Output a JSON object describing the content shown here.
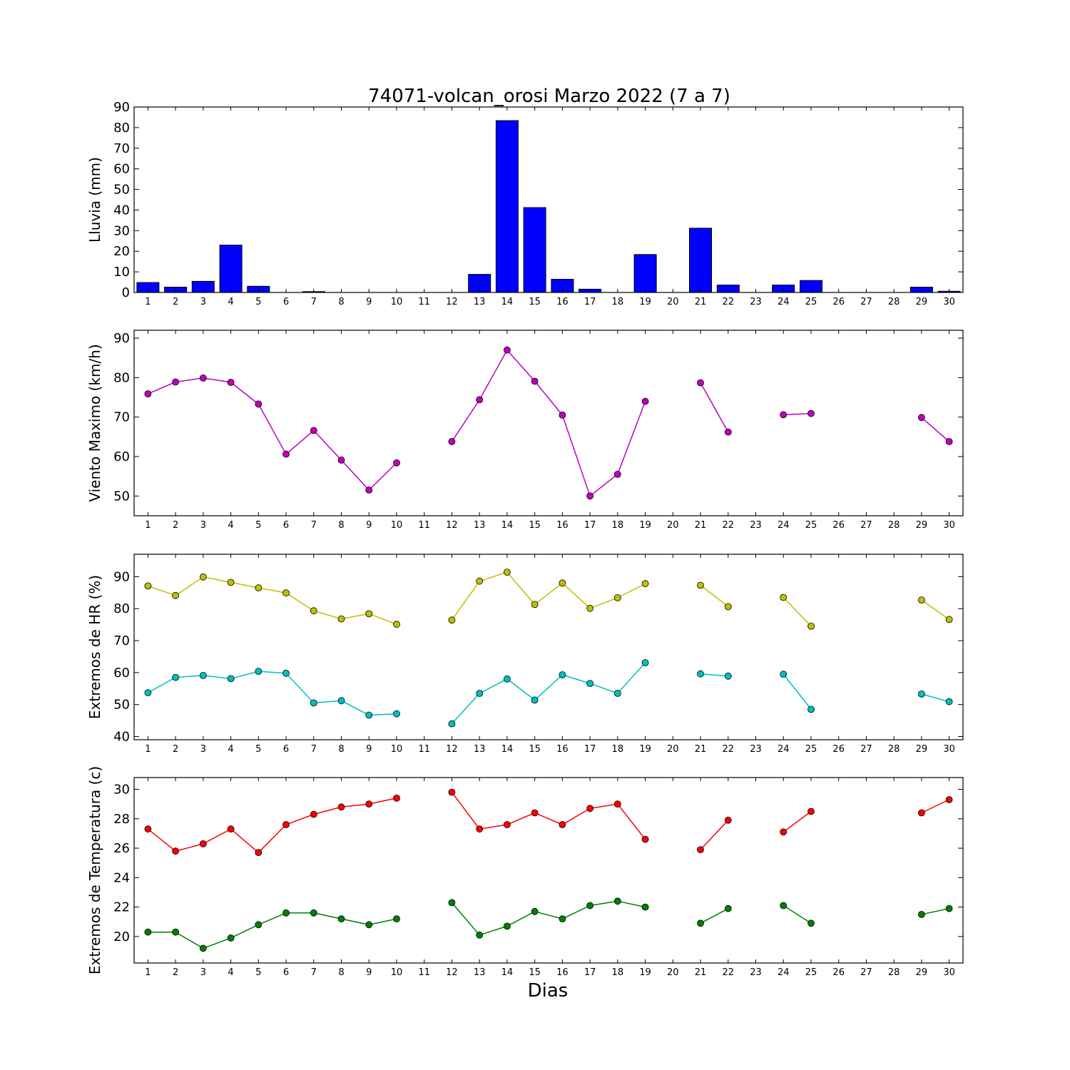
{
  "chart_data": {
    "title": "74071-volcan_orosi Marzo 2022  (7 a 7)",
    "xlabel": "Dias",
    "x_ticks": [
      "1",
      "2",
      "3",
      "4",
      "5",
      "6",
      "7",
      "8",
      "9",
      "10",
      "11",
      "12",
      "13",
      "14",
      "15",
      "16",
      "17",
      "18",
      "19",
      "20",
      "21",
      "22",
      "23",
      "24",
      "25",
      "26",
      "27",
      "28",
      "29",
      "30"
    ],
    "panels": [
      {
        "type": "bar",
        "ylabel": "Lluvia (mm)",
        "ylim": [
          0,
          90
        ],
        "yticks": [
          0,
          10,
          20,
          30,
          40,
          50,
          60,
          70,
          80,
          90
        ],
        "series": [
          {
            "color": "#0000ff",
            "values": [
              4.8,
              2.6,
              5.4,
              23.0,
              3.0,
              0.0,
              0.4,
              0.0,
              0.0,
              0.0,
              0.0,
              0.0,
              8.8,
              83.4,
              41.2,
              6.4,
              1.6,
              0.0,
              18.4,
              0.0,
              31.2,
              3.6,
              0.0,
              3.6,
              5.8,
              0.0,
              0.0,
              0.0,
              2.6,
              0.6
            ]
          }
        ]
      },
      {
        "type": "line",
        "ylabel": "Viento Maximo (km/h)",
        "ylim": [
          45,
          92
        ],
        "yticks": [
          50,
          60,
          70,
          80,
          90
        ],
        "series": [
          {
            "color": "#bf00bf",
            "values": [
              75.9,
              78.9,
              79.9,
              78.8,
              73.3,
              60.6,
              66.6,
              59.1,
              51.5,
              58.4,
              null,
              63.8,
              74.4,
              87.0,
              79.1,
              70.5,
              50.0,
              55.5,
              74.0,
              null,
              78.7,
              66.2,
              null,
              70.6,
              70.9,
              null,
              null,
              null,
              69.9,
              63.8
            ]
          }
        ]
      },
      {
        "type": "line",
        "ylabel": "Extremos de HR (%)",
        "ylim": [
          39,
          97
        ],
        "yticks": [
          40,
          50,
          60,
          70,
          80,
          90
        ],
        "series": [
          {
            "color": "#bfbf00",
            "values": [
              87.1,
              84.1,
              89.9,
              88.2,
              86.5,
              84.9,
              79.3,
              76.8,
              78.4,
              75.1,
              null,
              76.4,
              88.6,
              91.4,
              81.3,
              88.0,
              80.1,
              83.4,
              87.8,
              null,
              87.3,
              80.6,
              null,
              83.5,
              74.5,
              null,
              null,
              null,
              82.7,
              76.6
            ]
          },
          {
            "color": "#00bfbf",
            "values": [
              53.7,
              58.5,
              59.1,
              58.1,
              60.4,
              59.8,
              50.5,
              51.2,
              46.7,
              47.1,
              null,
              44.0,
              53.5,
              58.0,
              51.4,
              59.3,
              56.6,
              53.5,
              63.1,
              null,
              59.6,
              58.9,
              null,
              59.5,
              48.5,
              null,
              null,
              null,
              53.3,
              50.9
            ]
          }
        ]
      },
      {
        "type": "line",
        "ylabel": "Extremos de Temperatura (c)",
        "ylim": [
          18.2,
          30.8
        ],
        "yticks": [
          20,
          22,
          24,
          26,
          28,
          30
        ],
        "series": [
          {
            "color": "#ff0000",
            "values": [
              27.3,
              25.8,
              26.3,
              27.3,
              25.7,
              27.6,
              28.3,
              28.8,
              29.0,
              29.4,
              null,
              29.8,
              27.3,
              27.6,
              28.4,
              27.6,
              28.7,
              29.0,
              26.6,
              null,
              25.9,
              27.9,
              null,
              27.1,
              28.5,
              null,
              null,
              null,
              28.4,
              29.3
            ]
          },
          {
            "color": "#008000",
            "values": [
              20.3,
              20.3,
              19.2,
              19.9,
              20.8,
              21.6,
              21.6,
              21.2,
              20.8,
              21.2,
              null,
              22.3,
              20.1,
              20.7,
              21.7,
              21.2,
              22.1,
              22.4,
              22.0,
              null,
              20.9,
              21.9,
              null,
              22.1,
              20.9,
              null,
              null,
              null,
              21.5,
              21.9
            ]
          }
        ]
      }
    ],
    "grid": false,
    "legend": "none"
  }
}
